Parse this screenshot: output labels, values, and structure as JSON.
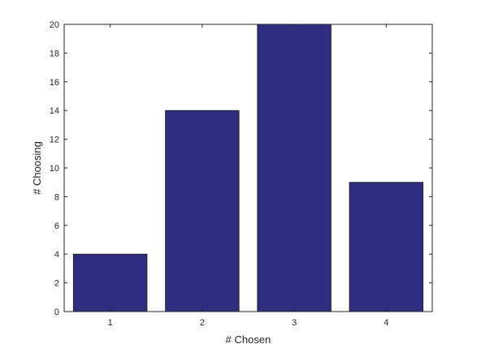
{
  "chart_data": {
    "type": "bar",
    "categories": [
      "1",
      "2",
      "3",
      "4"
    ],
    "values": [
      4,
      14,
      20,
      9
    ],
    "title": "",
    "xlabel": "# Chosen",
    "ylabel": "# Choosing",
    "ylim": [
      0,
      20
    ],
    "yticks": [
      0,
      2,
      4,
      6,
      8,
      10,
      12,
      14,
      16,
      18,
      20
    ],
    "grid": false,
    "bar_color": "#2e2d7f",
    "axis_color": "#262626"
  }
}
